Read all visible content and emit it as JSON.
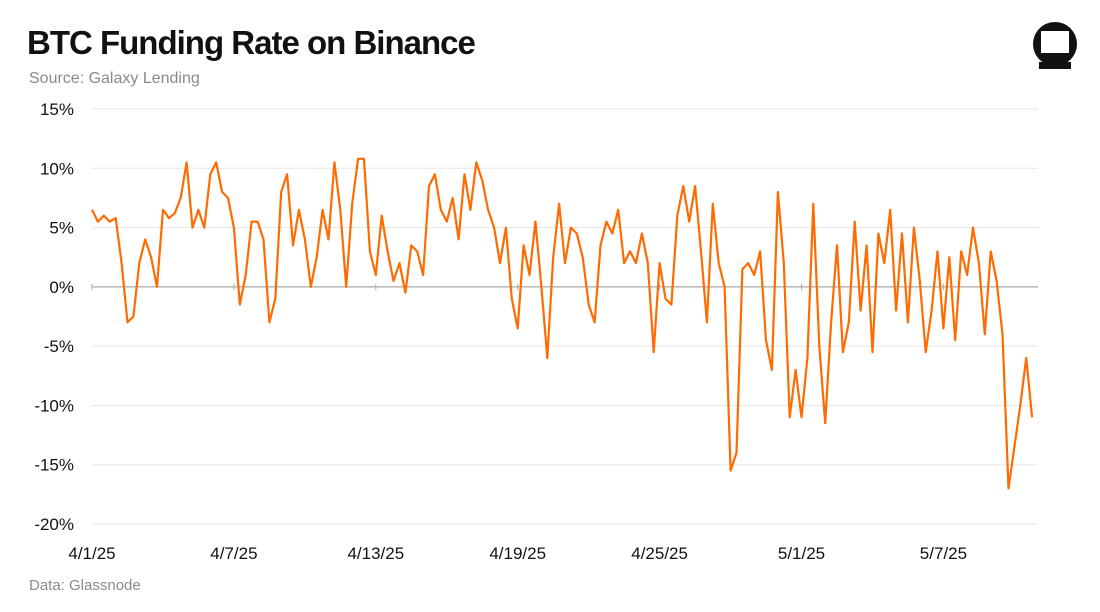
{
  "header": {
    "title": "BTC Funding Rate on Binance",
    "subtitle": "Source: Galaxy Lending"
  },
  "footer": {
    "note": "Data: Glassnode"
  },
  "logo": {
    "icon": "galaxy-logo-icon"
  },
  "colors": {
    "line": "#ff6b00",
    "grid": "#e6e6e6",
    "zero_axis": "#aaaaaa"
  },
  "chart_data": {
    "type": "line",
    "title": "BTC Funding Rate on Binance",
    "xlabel": "",
    "ylabel": "",
    "x_tick_labels": [
      "4/1/25",
      "4/7/25",
      "4/13/25",
      "4/19/25",
      "4/25/25",
      "5/1/25",
      "5/7/25"
    ],
    "y_tick_labels": [
      "15%",
      "10%",
      "5%",
      "0%",
      "-5%",
      "-10%",
      "-15%",
      "-20%"
    ],
    "y_ticks": [
      15,
      10,
      5,
      0,
      -5,
      -10,
      -15,
      -20
    ],
    "ylim": [
      -20,
      15
    ],
    "xlim": [
      "2025-04-01",
      "2025-05-10"
    ],
    "grid": true,
    "series": [
      {
        "values": [
          [
            "2025-04-01 00:00",
            6.5
          ],
          [
            "2025-04-01 06:00",
            5.5
          ],
          [
            "2025-04-01 12:00",
            6.0
          ],
          [
            "2025-04-01 18:00",
            5.5
          ],
          [
            "2025-04-02 00:00",
            5.8
          ],
          [
            "2025-04-02 06:00",
            2.0
          ],
          [
            "2025-04-02 12:00",
            -3.0
          ],
          [
            "2025-04-02 18:00",
            -2.5
          ],
          [
            "2025-04-03 00:00",
            2.0
          ],
          [
            "2025-04-03 06:00",
            4.0
          ],
          [
            "2025-04-03 12:00",
            2.5
          ],
          [
            "2025-04-03 18:00",
            0.0
          ],
          [
            "2025-04-04 00:00",
            6.5
          ],
          [
            "2025-04-04 06:00",
            5.8
          ],
          [
            "2025-04-04 12:00",
            6.2
          ],
          [
            "2025-04-04 18:00",
            7.5
          ],
          [
            "2025-04-05 00:00",
            10.5
          ],
          [
            "2025-04-05 06:00",
            5.0
          ],
          [
            "2025-04-05 12:00",
            6.5
          ],
          [
            "2025-04-05 18:00",
            5.0
          ],
          [
            "2025-04-06 00:00",
            9.5
          ],
          [
            "2025-04-06 06:00",
            10.5
          ],
          [
            "2025-04-06 12:00",
            8.0
          ],
          [
            "2025-04-06 18:00",
            7.5
          ],
          [
            "2025-04-07 00:00",
            5.0
          ],
          [
            "2025-04-07 06:00",
            -1.5
          ],
          [
            "2025-04-07 12:00",
            1.0
          ],
          [
            "2025-04-07 18:00",
            5.5
          ],
          [
            "2025-04-08 00:00",
            5.5
          ],
          [
            "2025-04-08 06:00",
            4.0
          ],
          [
            "2025-04-08 12:00",
            -3.0
          ],
          [
            "2025-04-08 18:00",
            -1.0
          ],
          [
            "2025-04-09 00:00",
            8.0
          ],
          [
            "2025-04-09 06:00",
            9.5
          ],
          [
            "2025-04-09 12:00",
            3.5
          ],
          [
            "2025-04-09 18:00",
            6.5
          ],
          [
            "2025-04-10 00:00",
            4.0
          ],
          [
            "2025-04-10 06:00",
            0.0
          ],
          [
            "2025-04-10 12:00",
            2.5
          ],
          [
            "2025-04-10 18:00",
            6.5
          ],
          [
            "2025-04-11 00:00",
            4.0
          ],
          [
            "2025-04-11 06:00",
            10.5
          ],
          [
            "2025-04-11 12:00",
            6.5
          ],
          [
            "2025-04-11 18:00",
            0.0
          ],
          [
            "2025-04-12 00:00",
            7.0
          ],
          [
            "2025-04-12 06:00",
            10.8
          ],
          [
            "2025-04-12 12:00",
            10.8
          ],
          [
            "2025-04-12 18:00",
            3.0
          ],
          [
            "2025-04-13 00:00",
            1.0
          ],
          [
            "2025-04-13 06:00",
            6.0
          ],
          [
            "2025-04-13 12:00",
            3.0
          ],
          [
            "2025-04-13 18:00",
            0.5
          ],
          [
            "2025-04-14 00:00",
            2.0
          ],
          [
            "2025-04-14 06:00",
            -0.5
          ],
          [
            "2025-04-14 12:00",
            3.5
          ],
          [
            "2025-04-14 18:00",
            3.0
          ],
          [
            "2025-04-15 00:00",
            1.0
          ],
          [
            "2025-04-15 06:00",
            8.5
          ],
          [
            "2025-04-15 12:00",
            9.5
          ],
          [
            "2025-04-15 18:00",
            6.5
          ],
          [
            "2025-04-16 00:00",
            5.5
          ],
          [
            "2025-04-16 06:00",
            7.5
          ],
          [
            "2025-04-16 12:00",
            4.0
          ],
          [
            "2025-04-16 18:00",
            9.5
          ],
          [
            "2025-04-17 00:00",
            6.5
          ],
          [
            "2025-04-17 06:00",
            10.5
          ],
          [
            "2025-04-17 12:00",
            9.0
          ],
          [
            "2025-04-17 18:00",
            6.5
          ],
          [
            "2025-04-18 00:00",
            5.0
          ],
          [
            "2025-04-18 06:00",
            2.0
          ],
          [
            "2025-04-18 12:00",
            5.0
          ],
          [
            "2025-04-18 18:00",
            -1.0
          ],
          [
            "2025-04-19 00:00",
            -3.5
          ],
          [
            "2025-04-19 06:00",
            3.5
          ],
          [
            "2025-04-19 12:00",
            1.0
          ],
          [
            "2025-04-19 18:00",
            5.5
          ],
          [
            "2025-04-20 00:00",
            0.0
          ],
          [
            "2025-04-20 06:00",
            -6.0
          ],
          [
            "2025-04-20 12:00",
            2.5
          ],
          [
            "2025-04-20 18:00",
            7.0
          ],
          [
            "2025-04-21 00:00",
            2.0
          ],
          [
            "2025-04-21 06:00",
            5.0
          ],
          [
            "2025-04-21 12:00",
            4.5
          ],
          [
            "2025-04-21 18:00",
            2.5
          ],
          [
            "2025-04-22 00:00",
            -1.5
          ],
          [
            "2025-04-22 06:00",
            -3.0
          ],
          [
            "2025-04-22 12:00",
            3.5
          ],
          [
            "2025-04-22 18:00",
            5.5
          ],
          [
            "2025-04-23 00:00",
            4.5
          ],
          [
            "2025-04-23 06:00",
            6.5
          ],
          [
            "2025-04-23 12:00",
            2.0
          ],
          [
            "2025-04-23 18:00",
            3.0
          ],
          [
            "2025-04-24 00:00",
            2.0
          ],
          [
            "2025-04-24 06:00",
            4.5
          ],
          [
            "2025-04-24 12:00",
            2.0
          ],
          [
            "2025-04-24 18:00",
            -5.5
          ],
          [
            "2025-04-25 00:00",
            2.0
          ],
          [
            "2025-04-25 06:00",
            -1.0
          ],
          [
            "2025-04-25 12:00",
            -1.5
          ],
          [
            "2025-04-25 18:00",
            6.0
          ],
          [
            "2025-04-26 00:00",
            8.5
          ],
          [
            "2025-04-26 06:00",
            5.5
          ],
          [
            "2025-04-26 12:00",
            8.5
          ],
          [
            "2025-04-26 18:00",
            3.0
          ],
          [
            "2025-04-27 00:00",
            -3.0
          ],
          [
            "2025-04-27 06:00",
            7.0
          ],
          [
            "2025-04-27 12:00",
            2.0
          ],
          [
            "2025-04-27 18:00",
            0.0
          ],
          [
            "2025-04-28 00:00",
            -15.5
          ],
          [
            "2025-04-28 06:00",
            -14.0
          ],
          [
            "2025-04-28 12:00",
            1.5
          ],
          [
            "2025-04-28 18:00",
            2.0
          ],
          [
            "2025-04-29 00:00",
            1.0
          ],
          [
            "2025-04-29 06:00",
            3.0
          ],
          [
            "2025-04-29 12:00",
            -4.5
          ],
          [
            "2025-04-29 18:00",
            -7.0
          ],
          [
            "2025-04-30 00:00",
            8.0
          ],
          [
            "2025-04-30 06:00",
            2.0
          ],
          [
            "2025-04-30 12:00",
            -11.0
          ],
          [
            "2025-04-30 18:00",
            -7.0
          ],
          [
            "2025-05-01 00:00",
            -11.0
          ],
          [
            "2025-05-01 06:00",
            -6.0
          ],
          [
            "2025-05-01 12:00",
            7.0
          ],
          [
            "2025-05-01 18:00",
            -5.0
          ],
          [
            "2025-05-02 00:00",
            -11.5
          ],
          [
            "2025-05-02 06:00",
            -3.0
          ],
          [
            "2025-05-02 12:00",
            3.5
          ],
          [
            "2025-05-02 18:00",
            -5.5
          ],
          [
            "2025-05-03 00:00",
            -3.0
          ],
          [
            "2025-05-03 06:00",
            5.5
          ],
          [
            "2025-05-03 12:00",
            -2.0
          ],
          [
            "2025-05-03 18:00",
            3.5
          ],
          [
            "2025-05-04 00:00",
            -5.5
          ],
          [
            "2025-05-04 06:00",
            4.5
          ],
          [
            "2025-05-04 12:00",
            2.0
          ],
          [
            "2025-05-04 18:00",
            6.5
          ],
          [
            "2025-05-05 00:00",
            -2.0
          ],
          [
            "2025-05-05 06:00",
            4.5
          ],
          [
            "2025-05-05 12:00",
            -3.0
          ],
          [
            "2025-05-05 18:00",
            5.0
          ],
          [
            "2025-05-06 00:00",
            0.5
          ],
          [
            "2025-05-06 06:00",
            -5.5
          ],
          [
            "2025-05-06 12:00",
            -2.0
          ],
          [
            "2025-05-06 18:00",
            3.0
          ],
          [
            "2025-05-07 00:00",
            -3.5
          ],
          [
            "2025-05-07 06:00",
            2.5
          ],
          [
            "2025-05-07 12:00",
            -4.5
          ],
          [
            "2025-05-07 18:00",
            3.0
          ],
          [
            "2025-05-08 00:00",
            1.0
          ],
          [
            "2025-05-08 06:00",
            5.0
          ],
          [
            "2025-05-08 12:00",
            2.0
          ],
          [
            "2025-05-08 18:00",
            -4.0
          ],
          [
            "2025-05-09 00:00",
            3.0
          ],
          [
            "2025-05-09 06:00",
            0.5
          ],
          [
            "2025-05-09 12:00",
            -4.0
          ],
          [
            "2025-05-09 18:00",
            -17.0
          ],
          [
            "2025-05-10 00:00",
            -13.5
          ],
          [
            "2025-05-10 06:00",
            -10.0
          ],
          [
            "2025-05-10 12:00",
            -6.0
          ],
          [
            "2025-05-10 18:00",
            -11.0
          ]
        ]
      }
    ]
  }
}
